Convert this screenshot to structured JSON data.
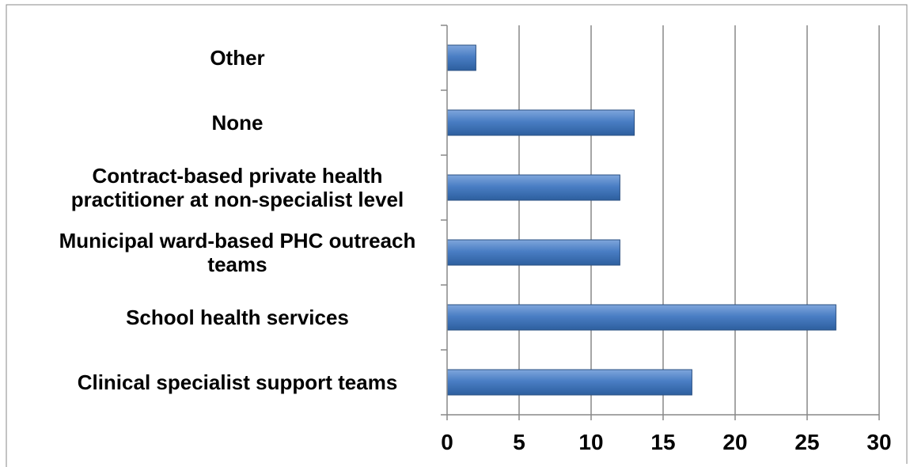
{
  "chart_data": {
    "type": "bar",
    "orientation": "horizontal",
    "categories": [
      "Clinical specialist support teams",
      "School health services",
      "Municipal ward-based PHC outreach teams",
      "Contract-based private health practitioner at non-specialist level",
      "None",
      "Other"
    ],
    "category_lines": [
      [
        "Clinical specialist support teams"
      ],
      [
        "School health services"
      ],
      [
        "Municipal ward-based PHC outreach",
        "teams"
      ],
      [
        "Contract-based private health",
        "practitioner at non-specialist level"
      ],
      [
        "None"
      ],
      [
        "Other"
      ]
    ],
    "values": [
      17,
      27,
      12,
      12,
      13,
      2
    ],
    "xlim": [
      0,
      30
    ],
    "x_ticks": [
      "0",
      "5",
      "10",
      "15",
      "20",
      "25",
      "30"
    ],
    "title": "",
    "xlabel": "",
    "ylabel": "",
    "grid": "vertical",
    "legend": "none",
    "colors": {
      "bar_light": "#7fa6dc",
      "bar_main": "#4a7ec4",
      "bar_dark": "#2d5f9f",
      "bar_border": "#2a4f82",
      "grid": "#888888",
      "axis": "#888888",
      "frame": "#888888"
    }
  }
}
